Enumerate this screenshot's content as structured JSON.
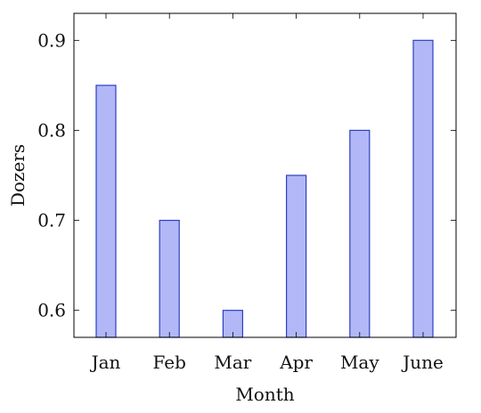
{
  "chart_data": {
    "type": "bar",
    "categories": [
      "Jan",
      "Feb",
      "Mar",
      "Apr",
      "May",
      "June"
    ],
    "series": [
      {
        "values": [
          0.85,
          0.7,
          0.6,
          0.75,
          0.8,
          0.9
        ]
      }
    ],
    "xlabel": "Month",
    "ylabel": "Dozers",
    "ylim": [
      0.57,
      0.93
    ],
    "yticks": [
      0.6,
      0.7,
      0.8,
      0.9
    ],
    "ytick_labels": [
      "0.6",
      "0.7",
      "0.8",
      "0.9"
    ],
    "grid": false,
    "colors": {
      "bar_fill": "#b2b8f7",
      "bar_stroke": "#2f3fbf",
      "axis": "#000000"
    }
  }
}
